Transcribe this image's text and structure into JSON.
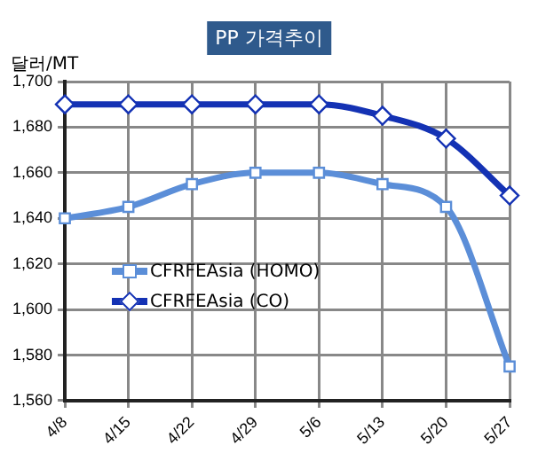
{
  "chart_data": {
    "type": "line",
    "title": "PP 가격추이",
    "ylabel": "달러/MT",
    "categories": [
      "4/8",
      "4/15",
      "4/22",
      "4/29",
      "5/6",
      "5/13",
      "5/20",
      "5/27"
    ],
    "series": [
      {
        "name": "CFRFEAsia (HOMO)",
        "color": "#5b8ed8",
        "marker": "square",
        "values": [
          1640,
          1645,
          1655,
          1660,
          1660,
          1655,
          1645,
          1575
        ]
      },
      {
        "name": "CFRFEAsia (CO)",
        "color": "#1432b4",
        "marker": "diamond",
        "values": [
          1690,
          1690,
          1690,
          1690,
          1690,
          1685,
          1675,
          1650
        ]
      }
    ],
    "ylim": [
      1560,
      1700
    ],
    "yticks": [
      {
        "value": 1560,
        "label": "1,560"
      },
      {
        "value": 1580,
        "label": "1,580"
      },
      {
        "value": 1600,
        "label": "1,600"
      },
      {
        "value": 1620,
        "label": "1,620"
      },
      {
        "value": 1640,
        "label": "1,640"
      },
      {
        "value": 1660,
        "label": "1,660"
      },
      {
        "value": 1680,
        "label": "1,680"
      },
      {
        "value": 1700,
        "label": "1,700"
      }
    ],
    "grid": true,
    "legend": "left",
    "line_style": "solid"
  }
}
